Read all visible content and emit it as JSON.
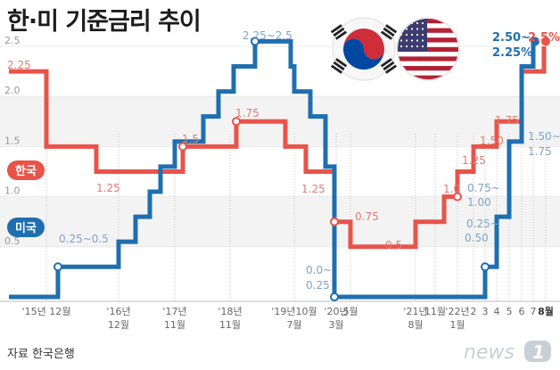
{
  "title": "한·미 기준금리 추이",
  "source": "자료 한국은행",
  "brand": {
    "text": "news",
    "number": "1"
  },
  "colors": {
    "korea": "#e8534a",
    "usa": "#1f6fb0",
    "korea_text": "#e07b6f",
    "usa_text": "#7fa3c8",
    "grid": "#e8e8e8",
    "label_korea_bg": "#e8534a",
    "label_usa_bg": "#1f6fb0"
  },
  "flags": [
    "korea-flag",
    "usa-flag"
  ],
  "chart_data": {
    "type": "line",
    "title": "한·미 기준금리 추이",
    "ylim": [
      0,
      2.5
    ],
    "yticks": [
      "0.5",
      "1.0",
      "1.5",
      "2.0",
      "2.5"
    ],
    "x_ticks": [
      {
        "label": "'15년 12월"
      },
      {
        "label": "'16년 12월"
      },
      {
        "label": "'17년 11월"
      },
      {
        "label": "'18년 11월"
      },
      {
        "label": "'19년10월 7월"
      },
      {
        "label": "'20년 3월"
      },
      {
        "label": "5월"
      },
      {
        "label": "'21년 8월"
      },
      {
        "label": "11월"
      },
      {
        "label": "'22년 1월"
      },
      {
        "label": "2"
      },
      {
        "label": "3"
      },
      {
        "label": "4"
      },
      {
        "label": "5"
      },
      {
        "label": "6"
      },
      {
        "label": "7"
      },
      {
        "label": "8월"
      }
    ],
    "series": [
      {
        "name": "한국",
        "values": [
          2.25,
          1.75,
          1.5,
          1.25,
          1.25,
          1.5,
          1.75,
          1.75,
          1.5,
          1.25,
          0.75,
          0.5,
          0.5,
          0.75,
          1.0,
          1.25,
          1.5,
          1.75,
          2.25,
          2.5
        ]
      },
      {
        "name": "미국",
        "values": [
          0.125,
          0.375,
          0.625,
          0.875,
          1.125,
          1.375,
          1.625,
          1.875,
          2.125,
          2.375,
          2.125,
          1.875,
          1.625,
          1.125,
          0.125,
          0.375,
          0.875,
          1.625,
          2.375
        ]
      }
    ],
    "annotations": {
      "korea": [
        "2.25",
        "1.25",
        "1.5",
        "1.75",
        "1.25",
        "0.75",
        "0.5",
        "1.0",
        "1.25",
        "1.50",
        "1.75",
        "2.5%"
      ],
      "usa": [
        "0.25~0.5",
        "2.25~2.5",
        "0.0~",
        "0.25",
        "0.25~",
        "0.50",
        "0.75~",
        "1.00",
        "1.50~",
        "1.75",
        "2.50~",
        "2.25%"
      ]
    }
  }
}
